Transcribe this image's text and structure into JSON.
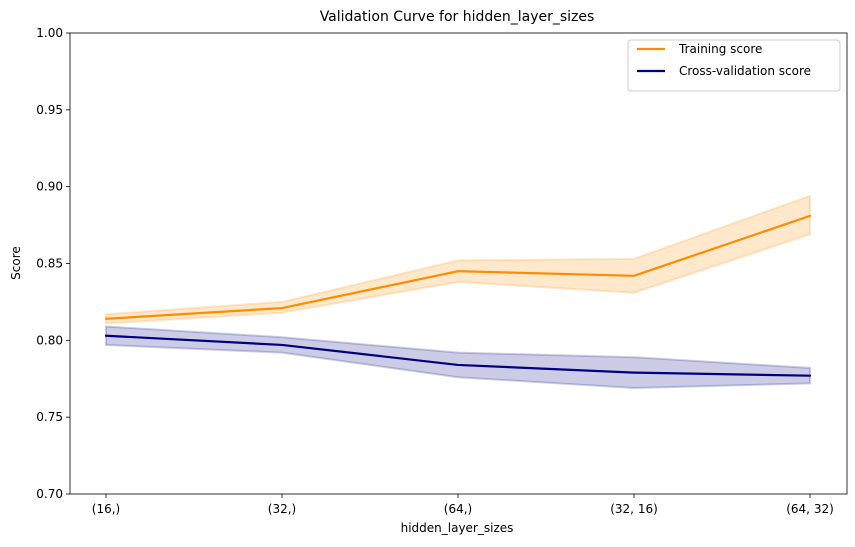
{
  "chart_data": {
    "type": "line",
    "title": "Validation Curve for hidden_layer_sizes",
    "xlabel": "hidden_layer_sizes",
    "ylabel": "Score",
    "categories": [
      "(16,)",
      "(32,)",
      "(64,)",
      "(32, 16)",
      "(64, 32)"
    ],
    "ylim": [
      0.7,
      1.0
    ],
    "yticks": [
      0.7,
      0.75,
      0.8,
      0.85,
      0.9,
      0.95,
      1.0
    ],
    "ytick_labels": [
      "0.70",
      "0.75",
      "0.80",
      "0.85",
      "0.90",
      "0.95",
      "1.00"
    ],
    "grid": false,
    "legend_position": "top-right",
    "series": [
      {
        "name": "Training score",
        "color": "#ff8c00",
        "values": [
          0.814,
          0.821,
          0.845,
          0.842,
          0.881
        ],
        "band_upper": [
          0.817,
          0.825,
          0.852,
          0.853,
          0.894
        ],
        "band_lower": [
          0.811,
          0.818,
          0.838,
          0.831,
          0.869
        ]
      },
      {
        "name": "Cross-validation score",
        "color": "#000080",
        "values": [
          0.803,
          0.797,
          0.784,
          0.779,
          0.777
        ],
        "band_upper": [
          0.809,
          0.802,
          0.792,
          0.789,
          0.782
        ],
        "band_lower": [
          0.797,
          0.792,
          0.776,
          0.769,
          0.772
        ]
      }
    ]
  }
}
